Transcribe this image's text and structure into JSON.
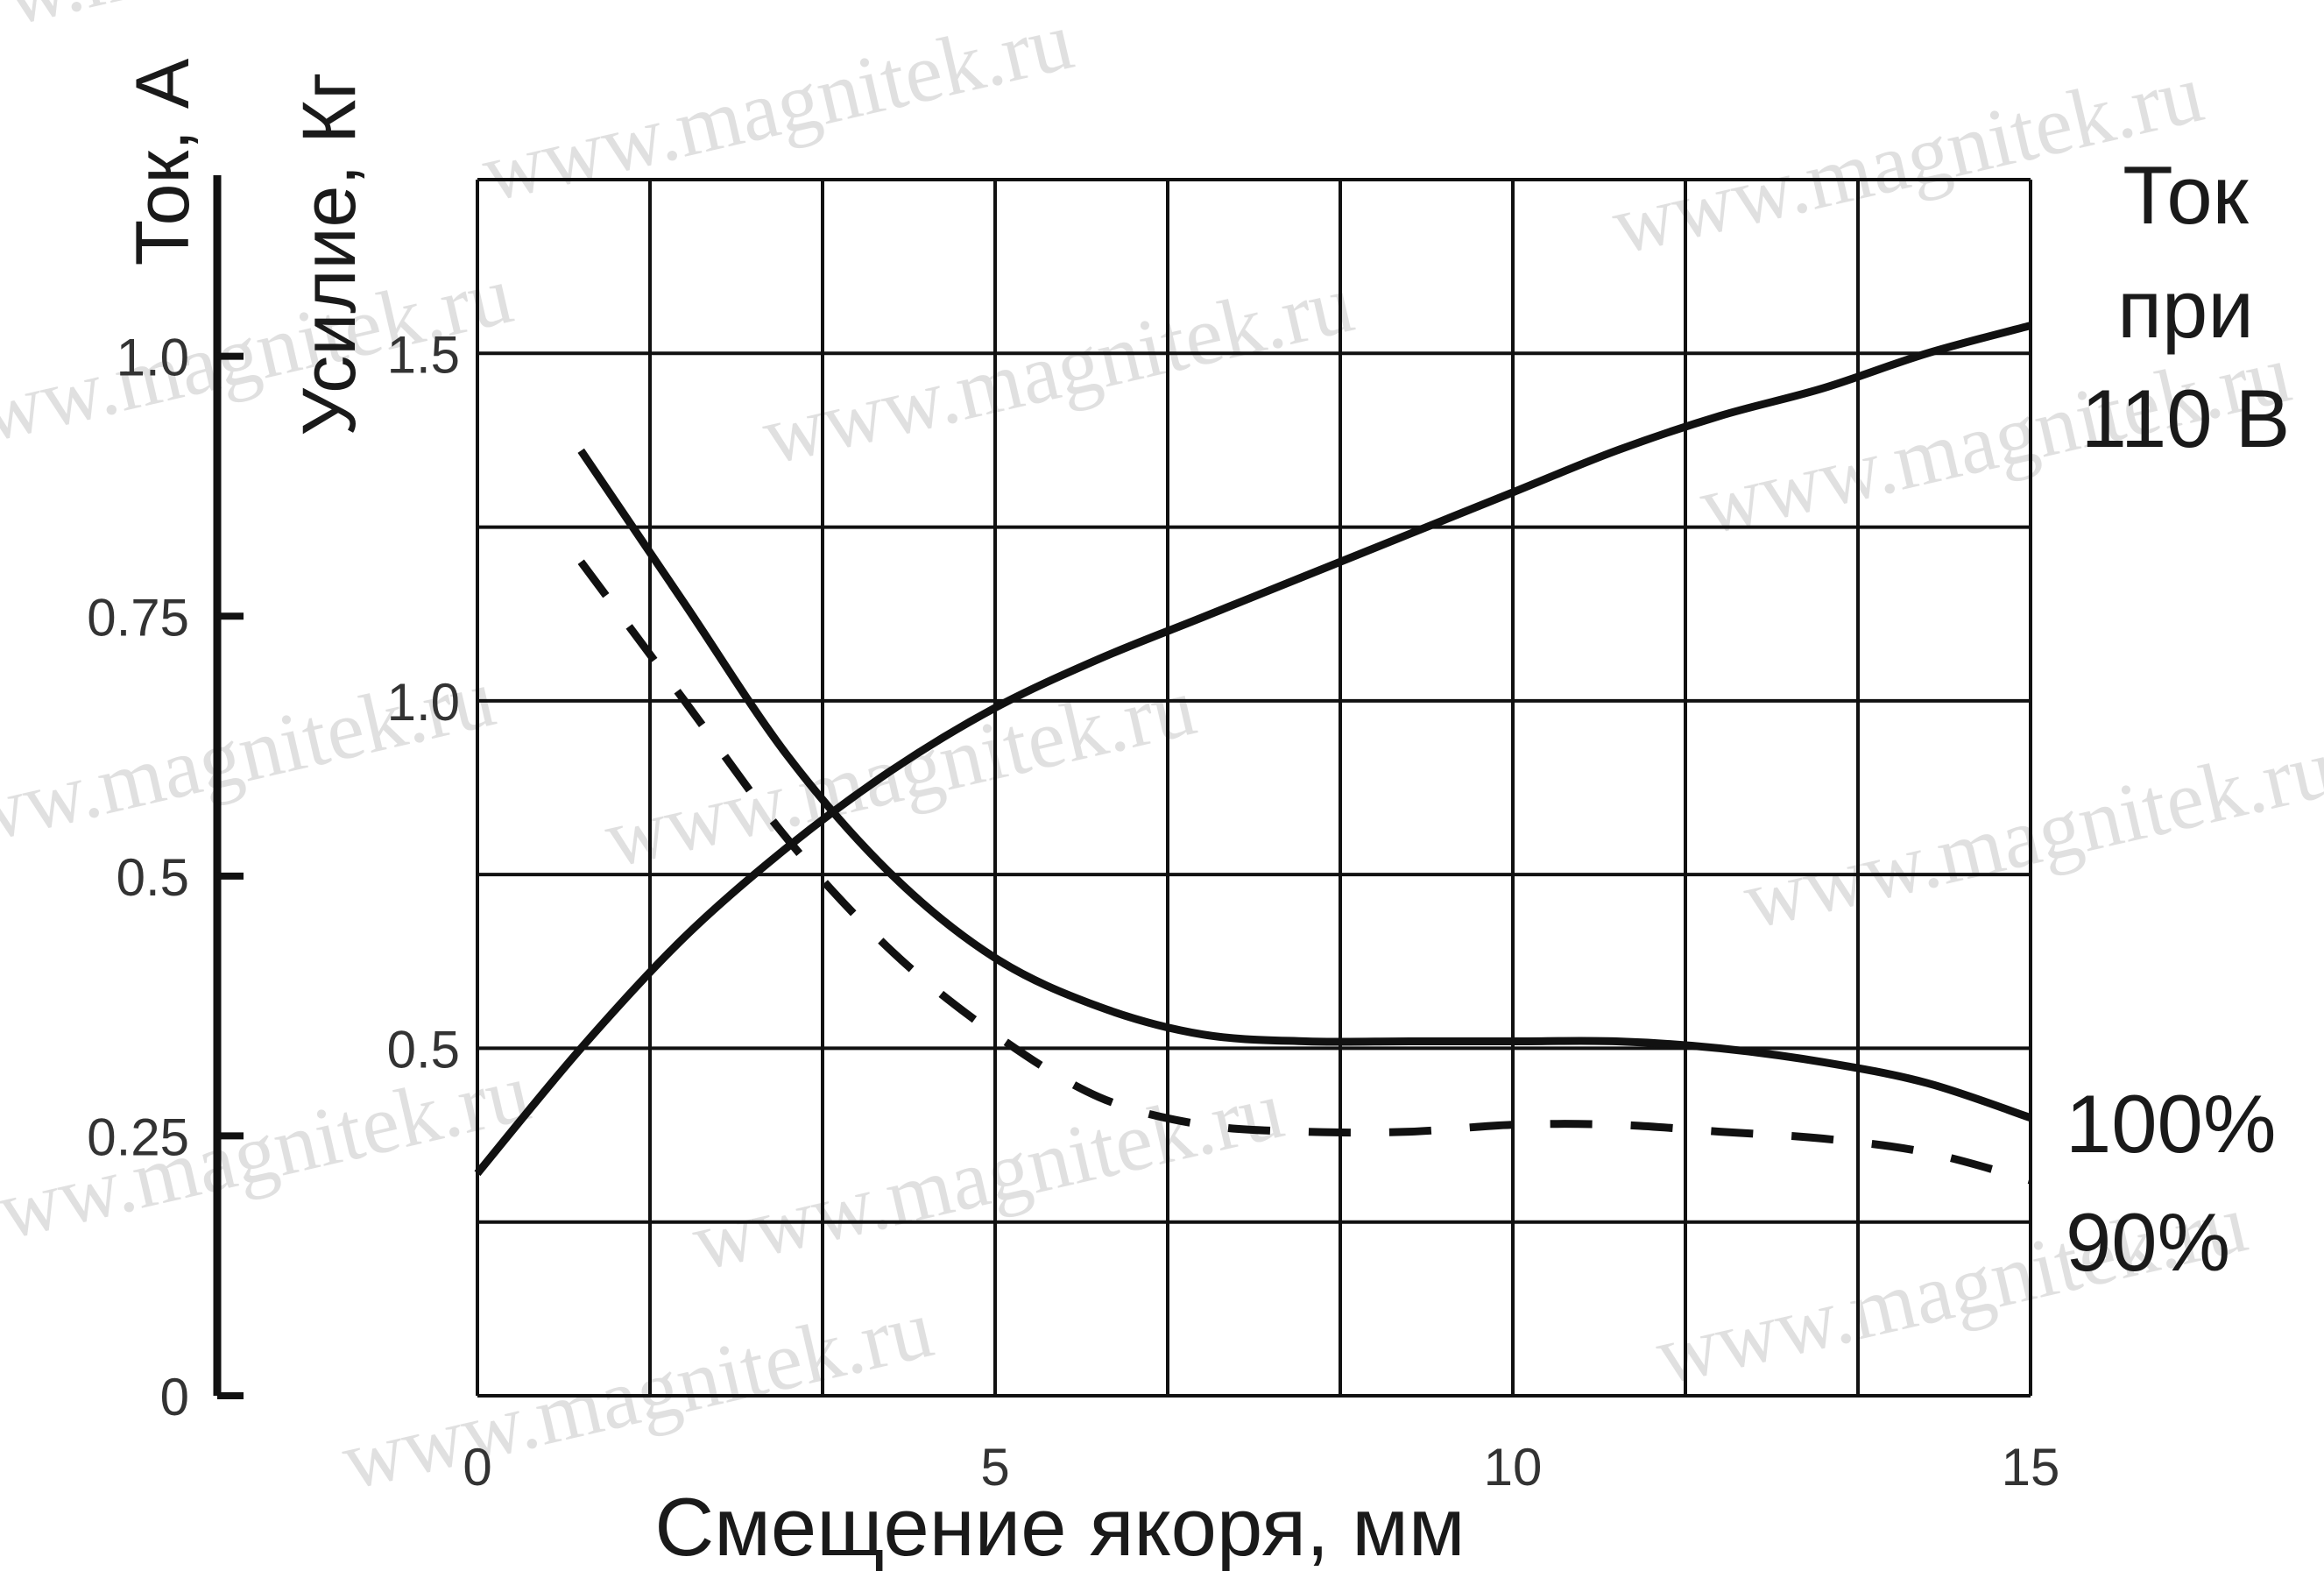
{
  "watermark": "www.magnitek.ru",
  "chart_data": {
    "type": "line",
    "xlabel": "Смещение якоря, мм",
    "x_ticks": [
      "0",
      "5",
      "10",
      "15"
    ],
    "xlim": [
      0,
      15
    ],
    "left_axis_current": {
      "label": "Ток, А",
      "ticks": [
        "0",
        "0.25",
        "0.5",
        "0.75",
        "1.0"
      ],
      "ylim": [
        0,
        1.17
      ]
    },
    "left_axis_force": {
      "label": "Усилие, Кг",
      "ticks": [
        "0.5",
        "1.0",
        "1.5"
      ],
      "ylim": [
        0,
        1.75
      ]
    },
    "grid": true,
    "annotations": {
      "current_line1": "Ток",
      "current_line2": "при",
      "current_line3": "110 В",
      "series_100": "100%",
      "series_90": "90%"
    },
    "series": [
      {
        "name": "Ток при 110 В",
        "style": "solid",
        "axis": "force",
        "x": [
          0,
          1,
          2,
          3,
          4,
          5,
          6,
          7,
          8,
          9,
          10,
          11,
          12,
          13,
          14,
          15
        ],
        "y": [
          0.32,
          0.5,
          0.66,
          0.79,
          0.9,
          0.99,
          1.06,
          1.12,
          1.18,
          1.24,
          1.3,
          1.36,
          1.41,
          1.45,
          1.5,
          1.54
        ]
      },
      {
        "name": "100%",
        "style": "solid",
        "axis": "force",
        "x": [
          1,
          2,
          3,
          4,
          5,
          6,
          7,
          8,
          9,
          10,
          11,
          12,
          13,
          14,
          15
        ],
        "y": [
          1.36,
          1.14,
          0.92,
          0.75,
          0.63,
          0.56,
          0.52,
          0.51,
          0.51,
          0.51,
          0.51,
          0.5,
          0.48,
          0.45,
          0.4
        ]
      },
      {
        "name": "90%",
        "style": "dashed",
        "axis": "force",
        "x": [
          1,
          2,
          3,
          4,
          5,
          6,
          7,
          8,
          9,
          10,
          11,
          12,
          13,
          14,
          15
        ],
        "y": [
          1.2,
          1.0,
          0.8,
          0.64,
          0.52,
          0.43,
          0.39,
          0.38,
          0.38,
          0.39,
          0.39,
          0.38,
          0.37,
          0.35,
          0.31
        ]
      }
    ]
  }
}
